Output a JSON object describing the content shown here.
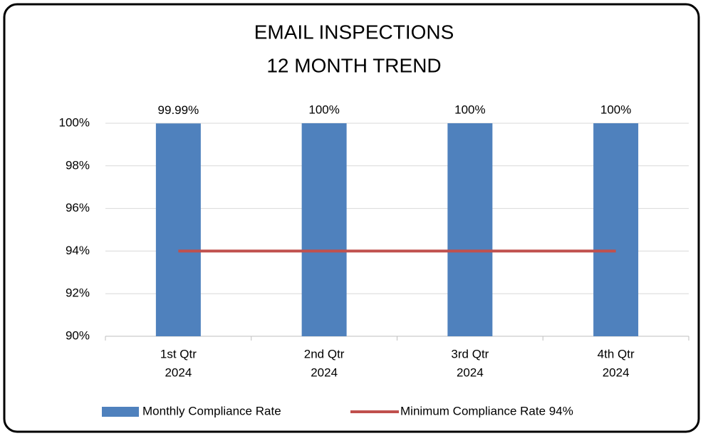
{
  "chart_data": {
    "type": "bar",
    "title": [
      "EMAIL INSPECTIONS",
      "12 MONTH TREND"
    ],
    "categories": [
      [
        "1st Qtr",
        "2024"
      ],
      [
        "2nd Qtr",
        "2024"
      ],
      [
        "3rd Qtr",
        "2024"
      ],
      [
        "4th Qtr",
        "2024"
      ]
    ],
    "series": [
      {
        "name": "Monthly Compliance Rate",
        "type": "bar",
        "color": "#4f81bd",
        "values": [
          99.99,
          100,
          100,
          100
        ],
        "value_labels": [
          "99.99%",
          "100%",
          "100%",
          "100%"
        ]
      },
      {
        "name": "Minimum Compliance Rate 94%",
        "type": "line",
        "color": "#c0504d",
        "values": [
          94,
          94,
          94,
          94
        ]
      }
    ],
    "ylim": [
      90,
      100
    ],
    "yticks": [
      {
        "value": 90,
        "label": "90%"
      },
      {
        "value": 92,
        "label": "92%"
      },
      {
        "value": 94,
        "label": "94%"
      },
      {
        "value": 96,
        "label": "96%"
      },
      {
        "value": 98,
        "label": "98%"
      },
      {
        "value": 100,
        "label": "100%"
      }
    ],
    "grid": true,
    "legend": "bottom"
  }
}
